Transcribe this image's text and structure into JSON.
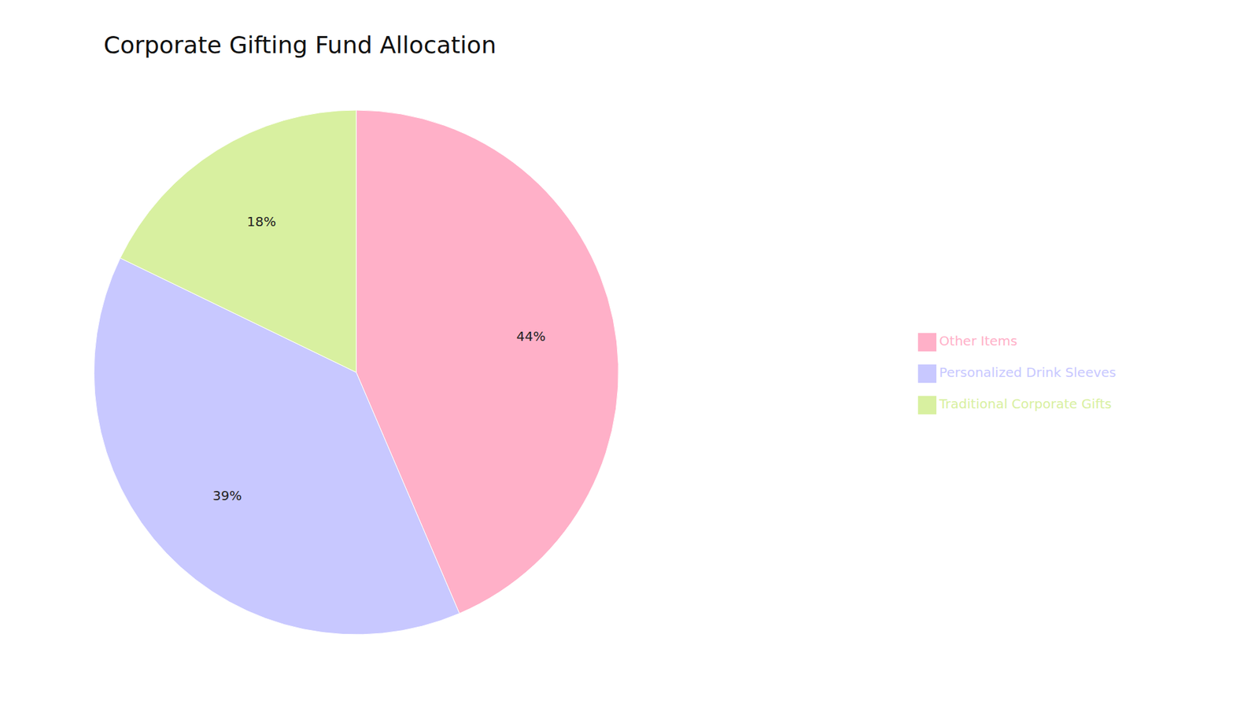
{
  "chart_data": {
    "type": "pie",
    "title": "Corporate Gifting Fund Allocation",
    "categories": [
      "Other Items",
      "Personalized Drink Sleeves",
      "Traditional Corporate Gifts"
    ],
    "values": [
      44,
      39,
      18
    ],
    "value_labels": [
      "44%",
      "39%",
      "18%"
    ],
    "colors": [
      "#FFB0C8",
      "#C8C8FF",
      "#D8F0A0"
    ],
    "data_labels": true,
    "legend": "right"
  }
}
